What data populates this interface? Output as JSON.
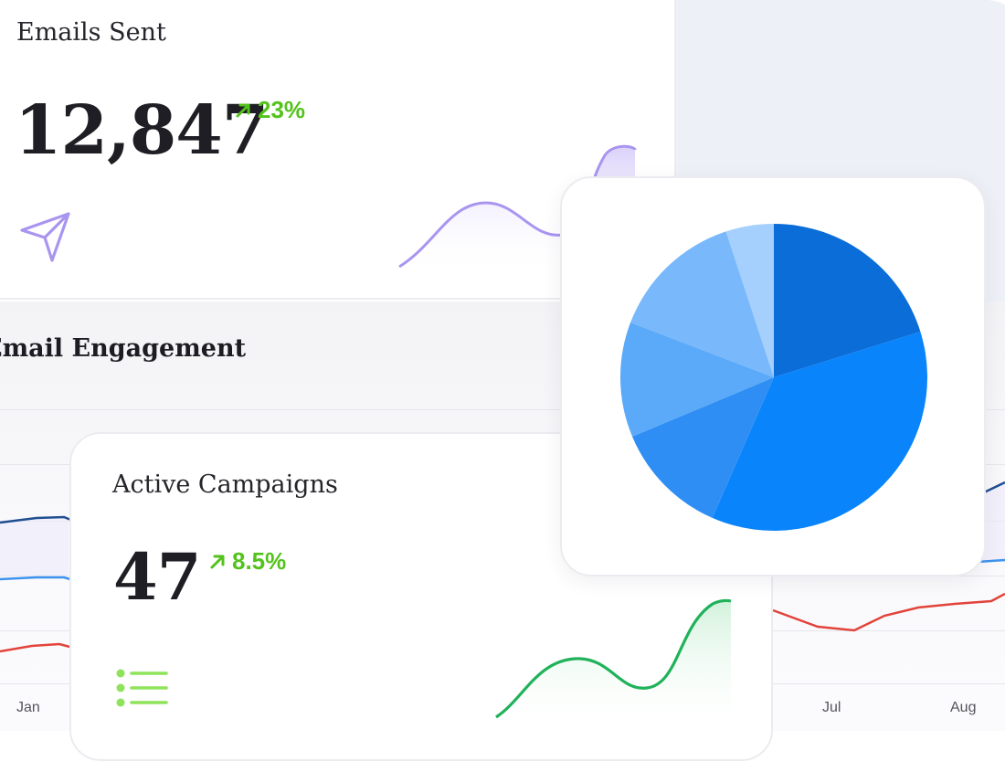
{
  "emails_sent": {
    "title": "Emails Sent",
    "value": "12,847",
    "change": "23%",
    "icon": "paper-plane-icon",
    "trend_icon": "arrow-up-right-icon",
    "accent_color": "#a995f0"
  },
  "email_engagement": {
    "title": "Email Engagement",
    "months_visible": [
      "Jan",
      "Jul",
      "Aug"
    ],
    "line_colors": [
      "#1f4f91",
      "#3d93ef",
      "#e2433a"
    ]
  },
  "active_campaigns": {
    "title": "Active Campaigns",
    "value": "47",
    "change": "8.5%",
    "icon": "list-icon",
    "trend_icon": "arrow-up-right-icon",
    "accent_color": "#20b25a"
  },
  "chart_data": {
    "type": "pie",
    "values": [
      20,
      36,
      12,
      12,
      14,
      5
    ],
    "colors": [
      "#0b6dd8",
      "#0a84fb",
      "#2f8ef4",
      "#5aaaf9",
      "#78b8fb",
      "#a5cffc"
    ]
  },
  "colors": {
    "trend_positive": "#53c31b",
    "icon_green": "#8fe35a",
    "icon_purple": "#a995f0"
  }
}
